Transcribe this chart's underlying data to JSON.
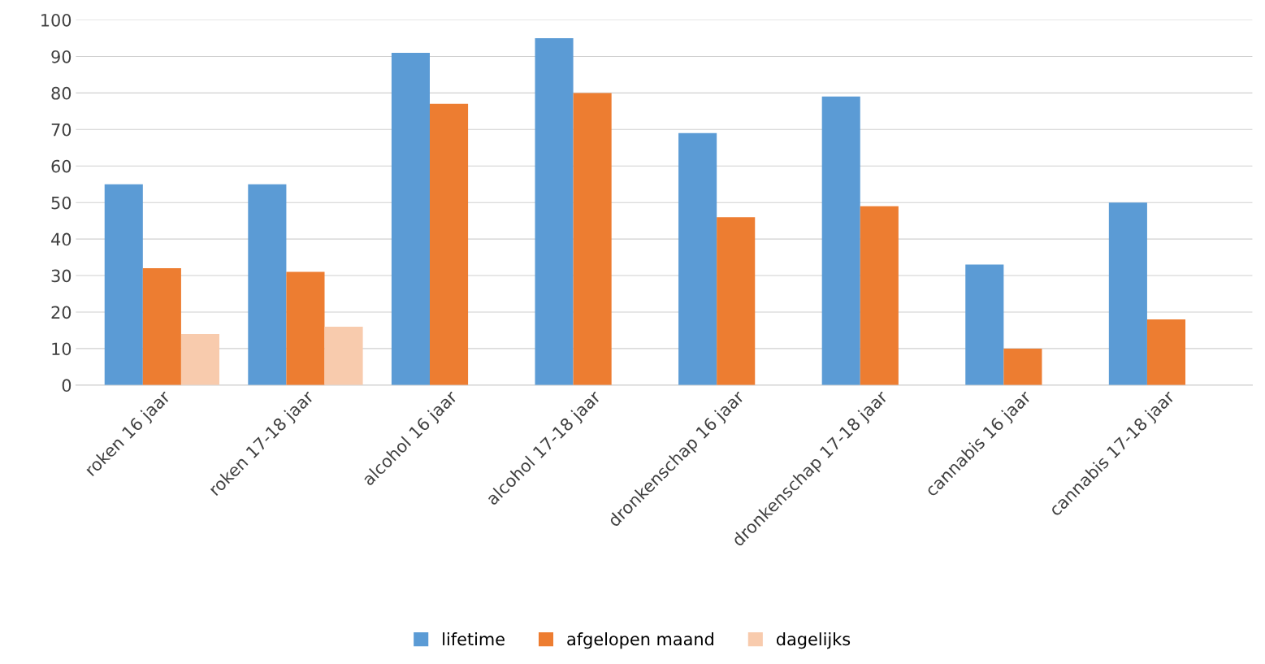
{
  "chart_data": {
    "type": "bar",
    "categories": [
      "roken 16 jaar",
      "roken 17-18 jaar",
      "alcohol 16 jaar",
      "alcohol 17-18 jaar",
      "dronkenschap 16 jaar",
      "dronkenschap 17-18 jaar",
      "cannabis 16 jaar",
      "cannabis 17-18 jaar"
    ],
    "series": [
      {
        "name": "lifetime",
        "color": "#5b9bd5",
        "values": [
          55,
          55,
          91,
          95,
          69,
          79,
          33,
          50
        ]
      },
      {
        "name": "afgelopen maand",
        "color": "#ed7d31",
        "values": [
          32,
          31,
          77,
          80,
          46,
          49,
          10,
          18
        ]
      },
      {
        "name": "dagelijks",
        "color": "#f8cbad",
        "values": [
          14,
          16,
          null,
          null,
          null,
          null,
          null,
          null
        ]
      }
    ],
    "ylim": [
      0,
      100
    ],
    "yticks": [
      0,
      10,
      20,
      30,
      40,
      50,
      60,
      70,
      80,
      90,
      100
    ],
    "grid": "y",
    "legend": "bottom"
  }
}
